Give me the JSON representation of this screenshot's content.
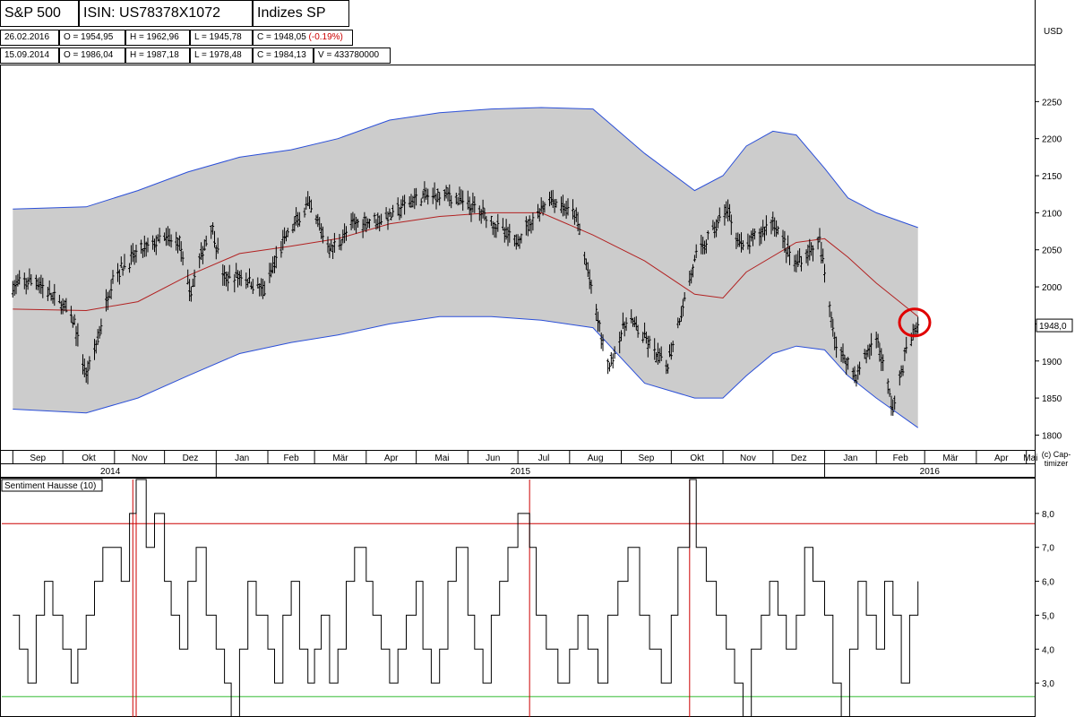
{
  "header": {
    "symbol": "S&P 500",
    "isin": "ISIN: US78378X1072",
    "exchange": "Indizes SP",
    "currency": "USD",
    "row1": {
      "date": "26.02.2016",
      "open": "O = 1954,95",
      "high": "H = 1962,96",
      "low": "L = 1945,78",
      "close": "C = 1948,05",
      "change": "(-0.19%)"
    },
    "row2": {
      "date": "15.09.2014",
      "open": "O = 1986,04",
      "high": "H = 1987,18",
      "low": "L = 1978,48",
      "close": "C = 1984,13",
      "volume": "V = 433780000"
    }
  },
  "copyright": "(c) Cap-timizer",
  "colors": {
    "band_fill": "#cccccc",
    "band_line": "#2b4fd8",
    "ma_line": "#b22222",
    "price": "#000000",
    "signal_high": "#cc0000",
    "signal_low": "#33bb33",
    "marker": "#e00000"
  },
  "chart_data": [
    {
      "type": "line",
      "subtype": "ohlc-with-bands",
      "title": "",
      "ylabel": "USD",
      "ylim": [
        1780,
        2300
      ],
      "yticks": [
        1800,
        1850,
        1900,
        1950,
        2000,
        2050,
        2100,
        2150,
        2200,
        2250
      ],
      "ytick_labels": [
        "1800",
        "1850",
        "1900",
        "1950",
        "2000",
        "2050",
        "2100",
        "2150",
        "2200",
        "2250"
      ],
      "last_value_label": "1948,0",
      "months": [
        "Sep",
        "Okt",
        "Nov",
        "Dez",
        "Jan",
        "Feb",
        "Mär",
        "Apr",
        "Mai",
        "Jun",
        "Jul",
        "Aug",
        "Sep",
        "Okt",
        "Nov",
        "Dez",
        "Jan",
        "Feb",
        "Mär",
        "Apr",
        "Mai"
      ],
      "years": [
        "2014",
        "2015",
        "2016"
      ],
      "series": [
        {
          "name": "",
          "role": "price",
          "x": [
            "2014-09-01",
            "2014-09-15",
            "2014-09-25",
            "2014-10-01",
            "2014-10-08",
            "2014-10-15",
            "2014-10-22",
            "2014-10-31",
            "2014-11-15",
            "2014-11-30",
            "2014-12-10",
            "2014-12-16",
            "2014-12-29",
            "2015-01-06",
            "2015-01-16",
            "2015-01-30",
            "2015-02-10",
            "2015-02-25",
            "2015-03-11",
            "2015-03-25",
            "2015-04-15",
            "2015-05-01",
            "2015-05-20",
            "2015-06-10",
            "2015-06-29",
            "2015-07-20",
            "2015-08-05",
            "2015-08-24",
            "2015-09-05",
            "2015-09-28",
            "2015-10-15",
            "2015-11-03",
            "2015-11-13",
            "2015-12-01",
            "2015-12-14",
            "2015-12-29",
            "2016-01-08",
            "2016-01-20",
            "2016-02-01",
            "2016-02-11",
            "2016-02-19",
            "2016-02-26"
          ],
          "values": [
            2000,
            2010,
            1985,
            1975,
            1950,
            1880,
            1930,
            2015,
            2045,
            2065,
            2060,
            1990,
            2085,
            2010,
            2015,
            1995,
            2060,
            2110,
            2050,
            2085,
            2095,
            2120,
            2125,
            2100,
            2060,
            2120,
            2095,
            1890,
            1960,
            1890,
            2035,
            2105,
            2050,
            2090,
            2030,
            2060,
            1920,
            1880,
            1935,
            1835,
            1915,
            1948
          ]
        },
        {
          "name": "",
          "role": "moving-average",
          "x": [
            "2014-09-01",
            "2014-10-15",
            "2014-11-15",
            "2014-12-15",
            "2015-01-15",
            "2015-02-15",
            "2015-03-15",
            "2015-04-15",
            "2015-05-15",
            "2015-06-15",
            "2015-07-15",
            "2015-08-15",
            "2015-09-15",
            "2015-10-15",
            "2015-11-01",
            "2015-11-15",
            "2015-12-15",
            "2016-01-01",
            "2016-01-15",
            "2016-02-01",
            "2016-02-26"
          ],
          "values": [
            1970,
            1968,
            1980,
            2015,
            2045,
            2055,
            2065,
            2085,
            2095,
            2100,
            2100,
            2070,
            2035,
            1990,
            1985,
            2020,
            2060,
            2065,
            2040,
            2005,
            1960
          ]
        },
        {
          "name": "",
          "role": "upper-band",
          "x": [
            "2014-09-01",
            "2014-10-15",
            "2014-11-15",
            "2014-12-15",
            "2015-01-15",
            "2015-02-15",
            "2015-03-15",
            "2015-04-15",
            "2015-05-15",
            "2015-06-15",
            "2015-07-15",
            "2015-08-15",
            "2015-09-15",
            "2015-10-15",
            "2015-11-01",
            "2015-11-15",
            "2015-12-01",
            "2015-12-15",
            "2016-01-01",
            "2016-01-15",
            "2016-02-01",
            "2016-02-26"
          ],
          "values": [
            2105,
            2108,
            2130,
            2155,
            2175,
            2185,
            2200,
            2225,
            2235,
            2240,
            2242,
            2240,
            2180,
            2130,
            2150,
            2190,
            2210,
            2205,
            2160,
            2120,
            2100,
            2080
          ]
        },
        {
          "name": "",
          "role": "lower-band",
          "x": [
            "2014-09-01",
            "2014-10-15",
            "2014-11-15",
            "2014-12-15",
            "2015-01-15",
            "2015-02-15",
            "2015-03-15",
            "2015-04-15",
            "2015-05-15",
            "2015-06-15",
            "2015-07-15",
            "2015-08-15",
            "2015-09-15",
            "2015-10-15",
            "2015-11-01",
            "2015-11-15",
            "2015-12-01",
            "2015-12-15",
            "2016-01-01",
            "2016-01-15",
            "2016-02-01",
            "2016-02-26"
          ],
          "values": [
            1835,
            1830,
            1850,
            1880,
            1910,
            1925,
            1935,
            1950,
            1960,
            1960,
            1955,
            1945,
            1870,
            1850,
            1850,
            1880,
            1910,
            1920,
            1915,
            1880,
            1850,
            1810
          ]
        }
      ],
      "annotations": [
        {
          "type": "circle-marker",
          "x": "2016-02-24",
          "y": 1952
        }
      ],
      "grid": false,
      "legend": "none"
    },
    {
      "type": "line",
      "subtype": "step",
      "title": "Sentiment Hausse (10)",
      "ylim": [
        2.0,
        9.0
      ],
      "yticks": [
        3.0,
        4.0,
        5.0,
        6.0,
        7.0,
        8.0
      ],
      "ytick_labels": [
        "3,0",
        "4,0",
        "5,0",
        "6,0",
        "7,0",
        "8,0"
      ],
      "thresholds": {
        "upper": 7.7,
        "lower": 2.6
      },
      "signal_dates": [
        "2014-11-12",
        "2014-11-14",
        "2015-07-08",
        "2015-10-12"
      ],
      "series": [
        {
          "name": "",
          "x": [
            "2014-09-01",
            "2014-09-05",
            "2014-09-10",
            "2014-09-15",
            "2014-09-20",
            "2014-09-25",
            "2014-10-01",
            "2014-10-06",
            "2014-10-10",
            "2014-10-15",
            "2014-10-20",
            "2014-10-25",
            "2014-11-01",
            "2014-11-05",
            "2014-11-10",
            "2014-11-14",
            "2014-11-20",
            "2014-11-25",
            "2014-12-01",
            "2014-12-05",
            "2014-12-10",
            "2014-12-15",
            "2014-12-20",
            "2014-12-26",
            "2015-01-01",
            "2015-01-06",
            "2015-01-10",
            "2015-01-15",
            "2015-01-20",
            "2015-01-25",
            "2015-02-01",
            "2015-02-05",
            "2015-02-10",
            "2015-02-15",
            "2015-02-20",
            "2015-02-25",
            "2015-03-01",
            "2015-03-05",
            "2015-03-10",
            "2015-03-15",
            "2015-03-20",
            "2015-03-25",
            "2015-04-01",
            "2015-04-05",
            "2015-04-10",
            "2015-04-15",
            "2015-04-20",
            "2015-04-25",
            "2015-05-01",
            "2015-05-05",
            "2015-05-10",
            "2015-05-15",
            "2015-05-20",
            "2015-05-25",
            "2015-06-01",
            "2015-06-05",
            "2015-06-10",
            "2015-06-15",
            "2015-06-20",
            "2015-06-25",
            "2015-07-01",
            "2015-07-08",
            "2015-07-12",
            "2015-07-18",
            "2015-07-25",
            "2015-08-01",
            "2015-08-06",
            "2015-08-12",
            "2015-08-18",
            "2015-08-24",
            "2015-08-30",
            "2015-09-05",
            "2015-09-12",
            "2015-09-18",
            "2015-09-25",
            "2015-10-01",
            "2015-10-05",
            "2015-10-12",
            "2015-10-16",
            "2015-10-22",
            "2015-10-28",
            "2015-11-03",
            "2015-11-08",
            "2015-11-13",
            "2015-11-18",
            "2015-11-24",
            "2015-11-29",
            "2015-12-04",
            "2015-12-09",
            "2015-12-15",
            "2015-12-20",
            "2015-12-25",
            "2016-01-01",
            "2016-01-06",
            "2016-01-11",
            "2016-01-16",
            "2016-01-21",
            "2016-01-26",
            "2016-02-01",
            "2016-02-06",
            "2016-02-11",
            "2016-02-16",
            "2016-02-21",
            "2016-02-26"
          ],
          "values": [
            5,
            4,
            3,
            5,
            6,
            5,
            4,
            3,
            4,
            5,
            6,
            7,
            7,
            6,
            8,
            9,
            7,
            8,
            6,
            5,
            4,
            6,
            7,
            5,
            4,
            3,
            2,
            4,
            6,
            5,
            4,
            3,
            5,
            6,
            4,
            3,
            4,
            5,
            3,
            4,
            6,
            7,
            6,
            5,
            4,
            3,
            4,
            5,
            6,
            4,
            3,
            4,
            6,
            7,
            5,
            4,
            3,
            5,
            6,
            7,
            8,
            7,
            5,
            4,
            3,
            4,
            5,
            4,
            3,
            5,
            6,
            7,
            5,
            4,
            3,
            5,
            7,
            9,
            7,
            6,
            5,
            4,
            3,
            2,
            4,
            5,
            6,
            5,
            4,
            5,
            7,
            6,
            5,
            3,
            2,
            4,
            6,
            5,
            4,
            6,
            5,
            3,
            5,
            6
          ]
        }
      ],
      "grid": false,
      "legend": "none"
    }
  ]
}
